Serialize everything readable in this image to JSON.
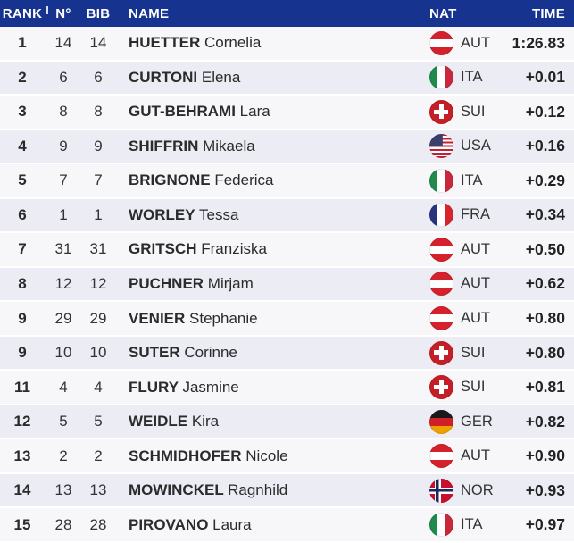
{
  "header": {
    "rank": "RANK",
    "no": "N°",
    "bib": "BIB",
    "name": "NAME",
    "nat": "NAT",
    "time": "TIME",
    "background_color": "#15338f"
  },
  "colors": {
    "row_odd": "#f7f7f9",
    "row_even": "#ebecf4",
    "text": "#2b2b2b"
  },
  "table": {
    "rows": [
      {
        "rank": "1",
        "no": "14",
        "bib": "14",
        "last": "HUETTER",
        "first": "Cornelia",
        "nat": "AUT",
        "flag": "aut",
        "time": "1:26.83"
      },
      {
        "rank": "2",
        "no": "6",
        "bib": "6",
        "last": "CURTONI",
        "first": "Elena",
        "nat": "ITA",
        "flag": "ita",
        "time": "+0.01"
      },
      {
        "rank": "3",
        "no": "8",
        "bib": "8",
        "last": "GUT-BEHRAMI",
        "first": "Lara",
        "nat": "SUI",
        "flag": "sui",
        "time": "+0.12"
      },
      {
        "rank": "4",
        "no": "9",
        "bib": "9",
        "last": "SHIFFRIN",
        "first": "Mikaela",
        "nat": "USA",
        "flag": "usa",
        "time": "+0.16"
      },
      {
        "rank": "5",
        "no": "7",
        "bib": "7",
        "last": "BRIGNONE",
        "first": "Federica",
        "nat": "ITA",
        "flag": "ita",
        "time": "+0.29"
      },
      {
        "rank": "6",
        "no": "1",
        "bib": "1",
        "last": "WORLEY",
        "first": "Tessa",
        "nat": "FRA",
        "flag": "fra",
        "time": "+0.34"
      },
      {
        "rank": "7",
        "no": "31",
        "bib": "31",
        "last": "GRITSCH",
        "first": "Franziska",
        "nat": "AUT",
        "flag": "aut",
        "time": "+0.50"
      },
      {
        "rank": "8",
        "no": "12",
        "bib": "12",
        "last": "PUCHNER",
        "first": "Mirjam",
        "nat": "AUT",
        "flag": "aut",
        "time": "+0.62"
      },
      {
        "rank": "9",
        "no": "29",
        "bib": "29",
        "last": "VENIER",
        "first": "Stephanie",
        "nat": "AUT",
        "flag": "aut",
        "time": "+0.80"
      },
      {
        "rank": "9",
        "no": "10",
        "bib": "10",
        "last": "SUTER",
        "first": "Corinne",
        "nat": "SUI",
        "flag": "sui",
        "time": "+0.80"
      },
      {
        "rank": "11",
        "no": "4",
        "bib": "4",
        "last": "FLURY",
        "first": "Jasmine",
        "nat": "SUI",
        "flag": "sui",
        "time": "+0.81"
      },
      {
        "rank": "12",
        "no": "5",
        "bib": "5",
        "last": "WEIDLE",
        "first": "Kira",
        "nat": "GER",
        "flag": "ger",
        "time": "+0.82"
      },
      {
        "rank": "13",
        "no": "2",
        "bib": "2",
        "last": "SCHMIDHOFER",
        "first": "Nicole",
        "nat": "AUT",
        "flag": "aut",
        "time": "+0.90"
      },
      {
        "rank": "14",
        "no": "13",
        "bib": "13",
        "last": "MOWINCKEL",
        "first": "Ragnhild",
        "nat": "NOR",
        "flag": "nor",
        "time": "+0.93"
      },
      {
        "rank": "15",
        "no": "28",
        "bib": "28",
        "last": "PIROVANO",
        "first": "Laura",
        "nat": "ITA",
        "flag": "ita",
        "time": "+0.97"
      }
    ]
  }
}
